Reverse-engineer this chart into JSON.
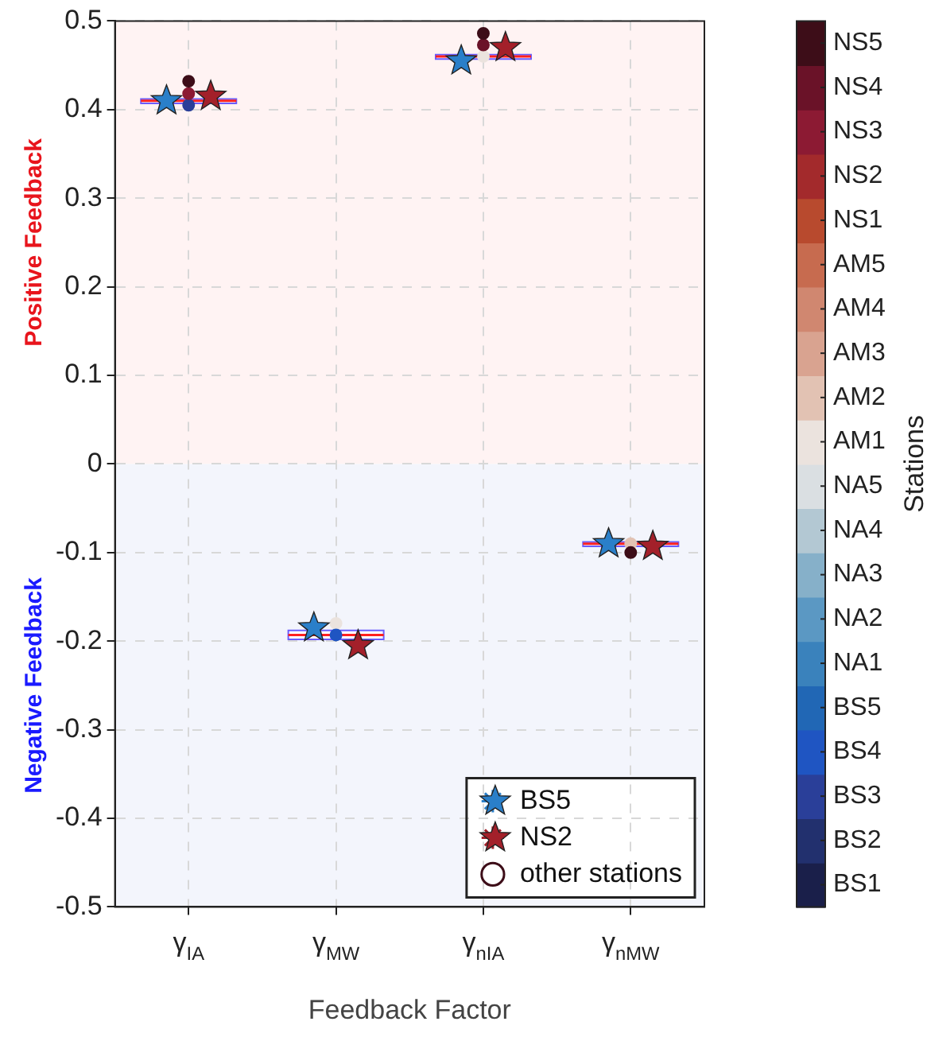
{
  "chart_data": {
    "type": "box",
    "categories": [
      "γ$_{IA}$",
      "γ$_{MW}$",
      "γ$_{nIA}$",
      "γ$_{nMW}$"
    ],
    "boxes": [
      {
        "low": 0.404,
        "q1": 0.407,
        "median": 0.41,
        "q3": 0.412,
        "high": 0.414
      },
      {
        "low": -0.2,
        "q1": -0.198,
        "median": -0.193,
        "q3": -0.188,
        "high": -0.186
      },
      {
        "low": 0.455,
        "q1": 0.457,
        "median": 0.46,
        "q3": 0.462,
        "high": 0.464
      },
      {
        "low": -0.094,
        "q1": -0.093,
        "median": -0.09,
        "q3": -0.088,
        "high": -0.087
      }
    ],
    "series": [
      {
        "type": "scatter",
        "name": "BS5",
        "marker": "star",
        "color": "#2a7fc9",
        "x": [
          "γ$_{IA}$",
          "γ$_{MW}$",
          "γ$_{nIA}$",
          "γ$_{nMW}$"
        ],
        "values": [
          0.41,
          -0.185,
          0.455,
          -0.09
        ]
      },
      {
        "type": "scatter",
        "name": "NS2",
        "marker": "star",
        "color": "#a3202a",
        "x": [
          "γ$_{IA}$",
          "γ$_{MW}$",
          "γ$_{nIA}$",
          "γ$_{nMW}$"
        ],
        "values": [
          0.415,
          -0.205,
          0.47,
          -0.093
        ]
      },
      {
        "type": "scatter",
        "name": "other stations",
        "marker": "circle",
        "x": [
          "γ$_{IA}$",
          "γ$_{IA}$",
          "γ$_{IA}$",
          "γ$_{MW}$",
          "γ$_{MW}$",
          "γ$_{nIA}$",
          "γ$_{nIA}$",
          "γ$_{nIA}$",
          "γ$_{nMW}$",
          "γ$_{nMW}$"
        ],
        "values": [
          0.405,
          0.418,
          0.432,
          -0.18,
          -0.193,
          0.46,
          0.473,
          0.486,
          -0.09,
          -0.1
        ],
        "colors": [
          "#2a3f99",
          "#8c1a33",
          "#3d0d18",
          "#ebe3de",
          "#1f55c2",
          "#ebe3de",
          "#6a1228",
          "#3d0d18",
          "#e2c2b3",
          "#3d0d18"
        ]
      }
    ],
    "xlabel": "Feedback Factor",
    "clabel": "Stations",
    "ylim": [
      -0.5,
      0.5
    ],
    "yticks": [
      -0.5,
      -0.4,
      -0.3,
      -0.2,
      -0.1,
      0,
      0.1,
      0.2,
      0.3,
      0.4,
      0.5
    ],
    "clim": [
      0.5,
      20.5
    ],
    "cticks": [
      {
        "value": 1,
        "label": "BS1"
      },
      {
        "value": 2,
        "label": "BS2"
      },
      {
        "value": 3,
        "label": "BS3"
      },
      {
        "value": 4,
        "label": "BS4"
      },
      {
        "value": 5,
        "label": "BS5"
      },
      {
        "value": 6,
        "label": "NA1"
      },
      {
        "value": 7,
        "label": "NA2"
      },
      {
        "value": 8,
        "label": "NA3"
      },
      {
        "value": 9,
        "label": "NA4"
      },
      {
        "value": 10,
        "label": "NA5"
      },
      {
        "value": 11,
        "label": "AM1"
      },
      {
        "value": 12,
        "label": "AM2"
      },
      {
        "value": 13,
        "label": "AM3"
      },
      {
        "value": 14,
        "label": "AM4"
      },
      {
        "value": 15,
        "label": "AM5"
      },
      {
        "value": 16,
        "label": "NS1"
      },
      {
        "value": 17,
        "label": "NS2"
      },
      {
        "value": 18,
        "label": "NS3"
      },
      {
        "value": 19,
        "label": "NS4"
      },
      {
        "value": 20,
        "label": "NS5"
      }
    ],
    "bands": [
      {
        "axis": "y",
        "from": 0,
        "to": 0.5,
        "label": "Positive Feedback",
        "color": "#fff3f3"
      },
      {
        "axis": "y",
        "from": -0.5,
        "to": 0,
        "label": "Negative Feedback",
        "color": "#f3f5fc"
      }
    ],
    "grid": true,
    "legend": "bottom right"
  }
}
